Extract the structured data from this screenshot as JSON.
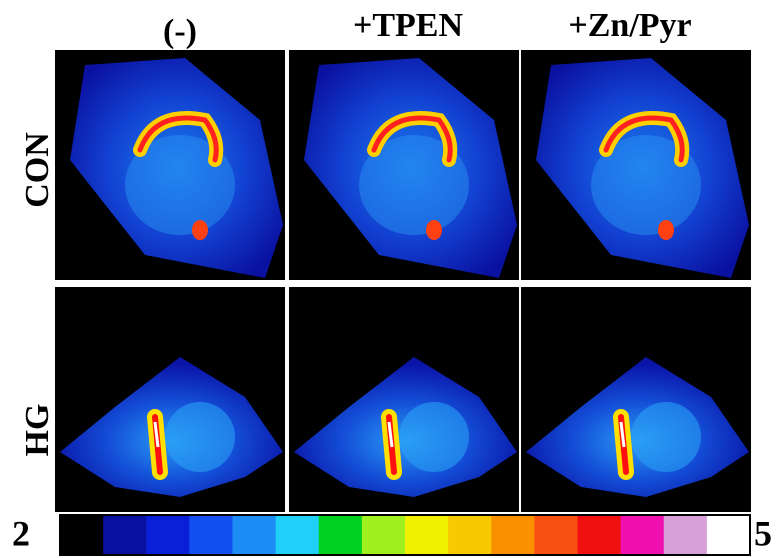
{
  "column_headers": [
    "(-)",
    "+TPEN",
    "+Zn/Pyr"
  ],
  "row_labels": [
    "CON",
    "HG"
  ],
  "scale": {
    "min": 2,
    "max": 5
  }
}
